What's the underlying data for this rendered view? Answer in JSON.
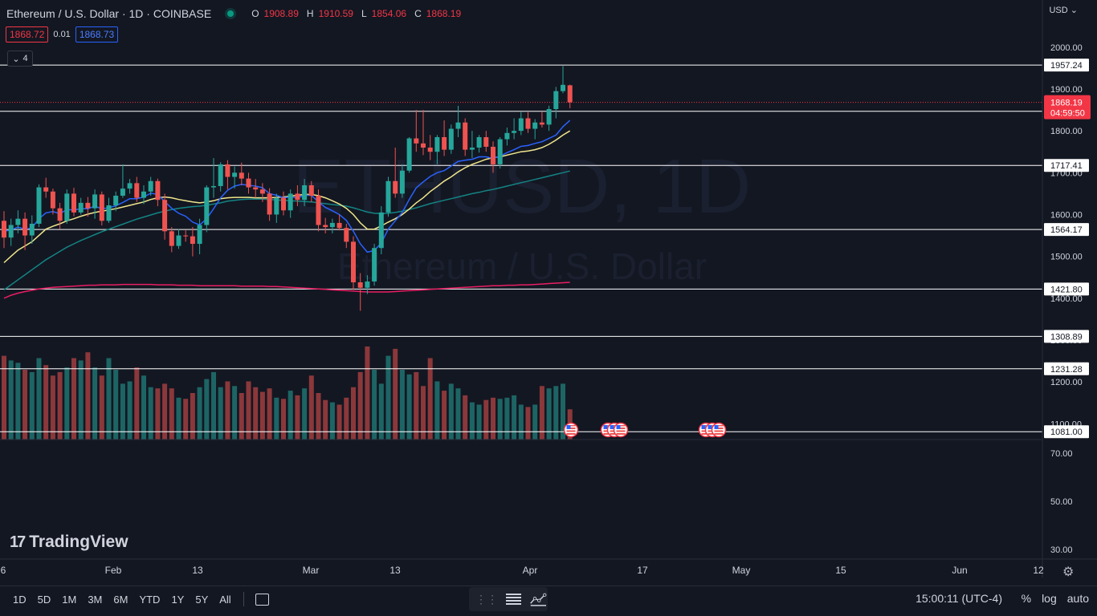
{
  "header": {
    "symbol_title": "Ethereum / U.S. Dollar · 1D · COINBASE",
    "ohlc": [
      {
        "k": "O",
        "v": "1908.89"
      },
      {
        "k": "H",
        "v": "1910.59"
      },
      {
        "k": "L",
        "v": "1854.06"
      },
      {
        "k": "C",
        "v": "1868.19"
      }
    ],
    "sell": "1868.72",
    "spread": "0.01",
    "buy": "1868.73",
    "indicator_count": "4",
    "currency": "USD"
  },
  "watermark": {
    "line1": "ETHUSD, 1D",
    "line2": "Ethereum / U.S. Dollar"
  },
  "chart_data": {
    "type": "candlestick",
    "x_ticks": [
      "6",
      "Feb",
      "13",
      "Mar",
      "13",
      "Apr",
      "17",
      "May",
      "15",
      "Jun",
      "12"
    ],
    "y_ticks": [
      "2000.00",
      "1900.00",
      "1800.00",
      "1700.00",
      "1600.00",
      "1500.00",
      "1400.00",
      "1300.00",
      "1200.00",
      "1100.00"
    ],
    "volume_ticks": [
      "70.00",
      "50.00",
      "30.00"
    ],
    "price_range": [
      1081,
      2000
    ],
    "horizontal_levels": [
      "1957.24",
      "1846.77",
      "1717.41",
      "1564.17",
      "1421.80",
      "1308.89",
      "1231.28",
      "1081.00"
    ],
    "last_price": "1868.19",
    "countdown": "04:59:50",
    "candles": [
      {
        "o": 1585,
        "h": 1608,
        "l": 1520,
        "c": 1545
      },
      {
        "o": 1545,
        "h": 1590,
        "l": 1525,
        "c": 1575
      },
      {
        "o": 1575,
        "h": 1610,
        "l": 1555,
        "c": 1590
      },
      {
        "o": 1590,
        "h": 1605,
        "l": 1515,
        "c": 1550
      },
      {
        "o": 1550,
        "h": 1598,
        "l": 1530,
        "c": 1578
      },
      {
        "o": 1578,
        "h": 1672,
        "l": 1570,
        "c": 1665
      },
      {
        "o": 1665,
        "h": 1688,
        "l": 1640,
        "c": 1655
      },
      {
        "o": 1655,
        "h": 1662,
        "l": 1600,
        "c": 1615
      },
      {
        "o": 1615,
        "h": 1628,
        "l": 1565,
        "c": 1585
      },
      {
        "o": 1585,
        "h": 1660,
        "l": 1578,
        "c": 1650
      },
      {
        "o": 1650,
        "h": 1664,
        "l": 1596,
        "c": 1605
      },
      {
        "o": 1605,
        "h": 1640,
        "l": 1600,
        "c": 1628
      },
      {
        "o": 1628,
        "h": 1642,
        "l": 1595,
        "c": 1615
      },
      {
        "o": 1615,
        "h": 1660,
        "l": 1590,
        "c": 1648
      },
      {
        "o": 1648,
        "h": 1655,
        "l": 1574,
        "c": 1585
      },
      {
        "o": 1585,
        "h": 1640,
        "l": 1580,
        "c": 1622
      },
      {
        "o": 1622,
        "h": 1655,
        "l": 1608,
        "c": 1645
      },
      {
        "o": 1645,
        "h": 1720,
        "l": 1640,
        "c": 1662
      },
      {
        "o": 1662,
        "h": 1685,
        "l": 1650,
        "c": 1675
      },
      {
        "o": 1675,
        "h": 1690,
        "l": 1630,
        "c": 1640
      },
      {
        "o": 1640,
        "h": 1670,
        "l": 1625,
        "c": 1655
      },
      {
        "o": 1655,
        "h": 1690,
        "l": 1645,
        "c": 1680
      },
      {
        "o": 1680,
        "h": 1686,
        "l": 1620,
        "c": 1635
      },
      {
        "o": 1635,
        "h": 1650,
        "l": 1540,
        "c": 1560
      },
      {
        "o": 1560,
        "h": 1570,
        "l": 1510,
        "c": 1525
      },
      {
        "o": 1525,
        "h": 1565,
        "l": 1518,
        "c": 1550
      },
      {
        "o": 1550,
        "h": 1562,
        "l": 1535,
        "c": 1548
      },
      {
        "o": 1548,
        "h": 1570,
        "l": 1500,
        "c": 1530
      },
      {
        "o": 1530,
        "h": 1590,
        "l": 1505,
        "c": 1575
      },
      {
        "o": 1575,
        "h": 1670,
        "l": 1558,
        "c": 1665
      },
      {
        "o": 1665,
        "h": 1735,
        "l": 1640,
        "c": 1668
      },
      {
        "o": 1668,
        "h": 1725,
        "l": 1655,
        "c": 1720
      },
      {
        "o": 1720,
        "h": 1730,
        "l": 1660,
        "c": 1690
      },
      {
        "o": 1690,
        "h": 1715,
        "l": 1662,
        "c": 1700
      },
      {
        "o": 1700,
        "h": 1724,
        "l": 1670,
        "c": 1686
      },
      {
        "o": 1686,
        "h": 1700,
        "l": 1650,
        "c": 1665
      },
      {
        "o": 1665,
        "h": 1685,
        "l": 1640,
        "c": 1660
      },
      {
        "o": 1660,
        "h": 1675,
        "l": 1630,
        "c": 1650
      },
      {
        "o": 1650,
        "h": 1663,
        "l": 1585,
        "c": 1600
      },
      {
        "o": 1600,
        "h": 1650,
        "l": 1580,
        "c": 1640
      },
      {
        "o": 1640,
        "h": 1655,
        "l": 1598,
        "c": 1610
      },
      {
        "o": 1610,
        "h": 1660,
        "l": 1592,
        "c": 1650
      },
      {
        "o": 1650,
        "h": 1670,
        "l": 1620,
        "c": 1635
      },
      {
        "o": 1635,
        "h": 1685,
        "l": 1620,
        "c": 1670
      },
      {
        "o": 1670,
        "h": 1680,
        "l": 1630,
        "c": 1645
      },
      {
        "o": 1645,
        "h": 1660,
        "l": 1560,
        "c": 1575
      },
      {
        "o": 1575,
        "h": 1592,
        "l": 1555,
        "c": 1570
      },
      {
        "o": 1570,
        "h": 1590,
        "l": 1555,
        "c": 1580
      },
      {
        "o": 1580,
        "h": 1600,
        "l": 1562,
        "c": 1568
      },
      {
        "o": 1568,
        "h": 1578,
        "l": 1520,
        "c": 1535
      },
      {
        "o": 1535,
        "h": 1548,
        "l": 1420,
        "c": 1438
      },
      {
        "o": 1438,
        "h": 1460,
        "l": 1370,
        "c": 1425
      },
      {
        "o": 1425,
        "h": 1455,
        "l": 1410,
        "c": 1440
      },
      {
        "o": 1440,
        "h": 1530,
        "l": 1430,
        "c": 1520
      },
      {
        "o": 1520,
        "h": 1620,
        "l": 1505,
        "c": 1605
      },
      {
        "o": 1605,
        "h": 1690,
        "l": 1595,
        "c": 1680
      },
      {
        "o": 1680,
        "h": 1760,
        "l": 1640,
        "c": 1650
      },
      {
        "o": 1650,
        "h": 1720,
        "l": 1640,
        "c": 1705
      },
      {
        "o": 1705,
        "h": 1785,
        "l": 1700,
        "c": 1782
      },
      {
        "o": 1782,
        "h": 1850,
        "l": 1750,
        "c": 1770
      },
      {
        "o": 1770,
        "h": 1850,
        "l": 1742,
        "c": 1760
      },
      {
        "o": 1760,
        "h": 1790,
        "l": 1730,
        "c": 1750
      },
      {
        "o": 1750,
        "h": 1790,
        "l": 1720,
        "c": 1785
      },
      {
        "o": 1785,
        "h": 1825,
        "l": 1740,
        "c": 1755
      },
      {
        "o": 1755,
        "h": 1815,
        "l": 1745,
        "c": 1805
      },
      {
        "o": 1805,
        "h": 1860,
        "l": 1785,
        "c": 1820
      },
      {
        "o": 1820,
        "h": 1830,
        "l": 1740,
        "c": 1755
      },
      {
        "o": 1755,
        "h": 1800,
        "l": 1735,
        "c": 1760
      },
      {
        "o": 1760,
        "h": 1790,
        "l": 1748,
        "c": 1785
      },
      {
        "o": 1785,
        "h": 1800,
        "l": 1750,
        "c": 1762
      },
      {
        "o": 1762,
        "h": 1775,
        "l": 1700,
        "c": 1720
      },
      {
        "o": 1720,
        "h": 1785,
        "l": 1710,
        "c": 1780
      },
      {
        "o": 1780,
        "h": 1808,
        "l": 1765,
        "c": 1795
      },
      {
        "o": 1795,
        "h": 1830,
        "l": 1780,
        "c": 1800
      },
      {
        "o": 1800,
        "h": 1845,
        "l": 1790,
        "c": 1830
      },
      {
        "o": 1830,
        "h": 1845,
        "l": 1795,
        "c": 1805
      },
      {
        "o": 1805,
        "h": 1828,
        "l": 1780,
        "c": 1820
      },
      {
        "o": 1820,
        "h": 1845,
        "l": 1808,
        "c": 1815
      },
      {
        "o": 1815,
        "h": 1860,
        "l": 1800,
        "c": 1852
      },
      {
        "o": 1852,
        "h": 1905,
        "l": 1830,
        "c": 1895
      },
      {
        "o": 1895,
        "h": 1955,
        "l": 1890,
        "c": 1910
      },
      {
        "o": 1908.89,
        "h": 1910.59,
        "l": 1854.06,
        "c": 1868.19
      }
    ],
    "volume": [
      72,
      68,
      66,
      60,
      58,
      70,
      64,
      55,
      58,
      62,
      70,
      68,
      75,
      62,
      55,
      70,
      60,
      48,
      50,
      62,
      55,
      45,
      44,
      48,
      44,
      36,
      35,
      40,
      45,
      52,
      58,
      45,
      50,
      46,
      40,
      50,
      45,
      41,
      44,
      36,
      35,
      42,
      38,
      44,
      55,
      40,
      34,
      32,
      30,
      36,
      45,
      58,
      80,
      60,
      48,
      72,
      78,
      60,
      56,
      58,
      46,
      70,
      50,
      42,
      48,
      44,
      38,
      32,
      30,
      34,
      36,
      35,
      36,
      38,
      30,
      28,
      30,
      46,
      44,
      46,
      48,
      26
    ],
    "volume_up": [
      false,
      true,
      true,
      false,
      true,
      true,
      false,
      false,
      false,
      true,
      false,
      true,
      false,
      true,
      false,
      true,
      true,
      true,
      true,
      false,
      true,
      true,
      false,
      false,
      false,
      true,
      false,
      false,
      true,
      true,
      true,
      true,
      false,
      true,
      false,
      false,
      false,
      false,
      false,
      true,
      false,
      true,
      false,
      true,
      false,
      false,
      false,
      true,
      false,
      false,
      false,
      false,
      false,
      true,
      true,
      true,
      false,
      true,
      true,
      false,
      false,
      false,
      true,
      false,
      true,
      true,
      false,
      true,
      true,
      false,
      false,
      true,
      true,
      true,
      true,
      false,
      true,
      false,
      true,
      true,
      true,
      false
    ],
    "ema8": [
      1560,
      1563,
      1570,
      1565,
      1568,
      1590,
      1604,
      1607,
      1602,
      1612,
      1611,
      1614,
      1614,
      1620,
      1614,
      1616,
      1621,
      1629,
      1638,
      1638,
      1642,
      1651,
      1648,
      1631,
      1615,
      1603,
      1596,
      1582,
      1575,
      1590,
      1614,
      1640,
      1658,
      1668,
      1672,
      1670,
      1668,
      1664,
      1650,
      1646,
      1640,
      1642,
      1640,
      1646,
      1646,
      1630,
      1617,
      1609,
      1600,
      1586,
      1560,
      1530,
      1510,
      1514,
      1532,
      1565,
      1585,
      1605,
      1636,
      1664,
      1678,
      1691,
      1700,
      1705,
      1716,
      1727,
      1730,
      1732,
      1738,
      1738,
      1734,
      1740,
      1748,
      1755,
      1763,
      1765,
      1770,
      1774,
      1782,
      1790,
      1810,
      1825
    ],
    "sma21": [
      1485,
      1500,
      1515,
      1525,
      1535,
      1550,
      1565,
      1572,
      1578,
      1585,
      1590,
      1596,
      1601,
      1605,
      1608,
      1611,
      1614,
      1618,
      1622,
      1626,
      1630,
      1636,
      1640,
      1642,
      1640,
      1636,
      1633,
      1630,
      1628,
      1630,
      1633,
      1638,
      1640,
      1641,
      1641,
      1641,
      1640,
      1640,
      1640,
      1641,
      1642,
      1644,
      1646,
      1648,
      1648,
      1645,
      1640,
      1633,
      1625,
      1615,
      1600,
      1580,
      1565,
      1565,
      1573,
      1582,
      1590,
      1600,
      1613,
      1628,
      1640,
      1655,
      1667,
      1680,
      1690,
      1702,
      1712,
      1720,
      1726,
      1732,
      1736,
      1738,
      1742,
      1746,
      1750,
      1752,
      1755,
      1760,
      1768,
      1778,
      1790,
      1800
    ],
    "sma50": [
      1420,
      1432,
      1444,
      1456,
      1468,
      1480,
      1492,
      1502,
      1512,
      1522,
      1530,
      1538,
      1545,
      1552,
      1559,
      1565,
      1571,
      1577,
      1583,
      1589,
      1594,
      1599,
      1604,
      1608,
      1612,
      1615,
      1617,
      1619,
      1620,
      1622,
      1625,
      1628,
      1632,
      1634,
      1636,
      1637,
      1637,
      1637,
      1636,
      1635,
      1634,
      1633,
      1632,
      1631,
      1630,
      1628,
      1626,
      1624,
      1622,
      1620,
      1616,
      1611,
      1606,
      1603,
      1602,
      1603,
      1605,
      1608,
      1612,
      1616,
      1621,
      1626,
      1630,
      1634,
      1638,
      1642,
      1646,
      1650,
      1653,
      1657,
      1660,
      1664,
      1668,
      1672,
      1676,
      1680,
      1684,
      1688,
      1692,
      1696,
      1700,
      1704
    ],
    "sma200": [
      1400,
      1407,
      1412,
      1416,
      1419,
      1422,
      1424,
      1426,
      1427,
      1428,
      1429,
      1430,
      1431,
      1431,
      1432,
      1432,
      1432,
      1433,
      1433,
      1433,
      1433,
      1433,
      1432,
      1432,
      1432,
      1431,
      1431,
      1431,
      1430,
      1430,
      1430,
      1430,
      1430,
      1430,
      1429,
      1429,
      1429,
      1429,
      1428,
      1428,
      1427,
      1426,
      1425,
      1424,
      1423,
      1422,
      1421,
      1420,
      1419,
      1418,
      1417,
      1416,
      1415,
      1415,
      1415,
      1415,
      1416,
      1417,
      1418,
      1419,
      1420,
      1421,
      1422,
      1423,
      1424,
      1425,
      1426,
      1427,
      1428,
      1429,
      1430,
      1430,
      1431,
      1431,
      1432,
      1432,
      1433,
      1434,
      1435,
      1436,
      1437,
      1438
    ]
  },
  "colors": {
    "up": "#26a69a",
    "down": "#ef5350",
    "ema8": "#2962ff",
    "sma21": "#f0e68c",
    "sma50": "#138484",
    "sma200": "#e91e63",
    "level_line": "#ffffff",
    "background": "#131722"
  },
  "toolbar": {
    "ranges": [
      "1D",
      "5D",
      "1M",
      "3M",
      "6M",
      "YTD",
      "1Y",
      "5Y",
      "All"
    ],
    "time": "15:00:11 (UTC-4)",
    "percent": "%",
    "log": "log",
    "auto": "auto"
  },
  "branding": {
    "logo_text": "TradingView"
  }
}
